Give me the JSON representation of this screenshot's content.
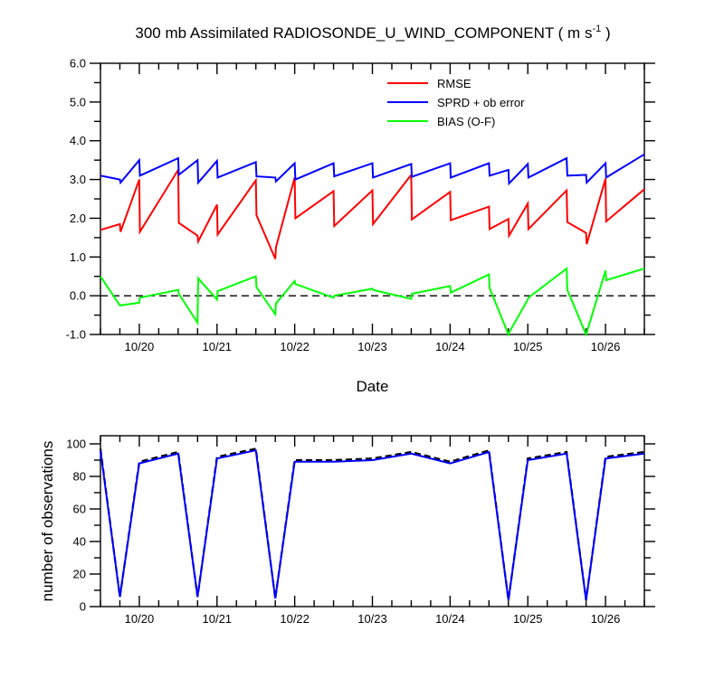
{
  "title_main": "300 mb Assimilated RADIOSONDE_U_WIND_COMPONENT ( m s",
  "title_sup": "-1",
  "title_close": " )",
  "chart_data": [
    {
      "type": "line",
      "xlabel": "Date",
      "ylabel": "",
      "x_range": [
        0,
        84
      ],
      "ylim": [
        -1.0,
        6.0
      ],
      "yticks": [
        -1.0,
        0.0,
        1.0,
        2.0,
        3.0,
        4.0,
        5.0,
        6.0
      ],
      "ytick_labels": [
        "-1.0",
        "0.0",
        "1.0",
        "2.0",
        "3.0",
        "4.0",
        "5.0",
        "6.0"
      ],
      "xticks": [
        6,
        18,
        30,
        42,
        54,
        66,
        78
      ],
      "xtick_labels": [
        "10/20",
        "10/21",
        "10/22",
        "10/23",
        "10/24",
        "10/25",
        "10/26"
      ],
      "legend_position": "top-right",
      "zero_line": "dashed",
      "series": [
        {
          "name": "RMSE",
          "color": "#ff0000",
          "x": [
            0,
            3,
            3.1,
            6,
            6.1,
            12,
            12.1,
            15,
            15.1,
            18,
            18.1,
            24,
            24.1,
            27,
            27.1,
            30,
            30.1,
            36,
            36.1,
            42,
            42.1,
            48,
            48.1,
            54,
            54.1,
            60,
            60.1,
            63,
            63.1,
            66,
            66.1,
            72,
            72.1,
            75,
            75.1,
            78,
            78.1,
            84
          ],
          "y": [
            1.7,
            1.85,
            1.65,
            3.0,
            1.65,
            3.25,
            1.88,
            1.55,
            1.4,
            2.35,
            1.58,
            2.98,
            2.08,
            0.95,
            1.25,
            3.05,
            2.0,
            2.7,
            1.8,
            2.72,
            1.85,
            3.12,
            1.97,
            2.68,
            1.95,
            2.3,
            1.72,
            1.98,
            1.55,
            2.38,
            1.72,
            2.72,
            1.9,
            1.62,
            1.33,
            3.02,
            1.92,
            2.75
          ]
        },
        {
          "name": "SPRD + ob error",
          "color": "#0000ff",
          "x": [
            0,
            3,
            3.1,
            6,
            6.1,
            12,
            12.1,
            15,
            15.1,
            18,
            18.1,
            24,
            24.1,
            27,
            27.1,
            30,
            30.1,
            36,
            36.1,
            42,
            42.1,
            48,
            48.1,
            54,
            54.1,
            60,
            60.1,
            63,
            63.1,
            66,
            66.1,
            72,
            72.1,
            75,
            75.1,
            78,
            78.1,
            84
          ],
          "y": [
            3.1,
            3.0,
            2.92,
            3.5,
            3.1,
            3.55,
            3.12,
            3.5,
            2.92,
            3.48,
            3.05,
            3.45,
            3.08,
            3.05,
            2.95,
            3.42,
            3.0,
            3.42,
            3.08,
            3.42,
            3.05,
            3.4,
            3.07,
            3.42,
            3.05,
            3.42,
            3.1,
            3.25,
            2.9,
            3.4,
            3.05,
            3.55,
            3.1,
            3.12,
            2.92,
            3.42,
            3.05,
            3.65
          ]
        },
        {
          "name": "BIAS (O-F)",
          "color": "#00ff00",
          "x": [
            0,
            3,
            6,
            6.1,
            12,
            12.1,
            15,
            15.1,
            18,
            18.1,
            24,
            24.1,
            27,
            27.1,
            30,
            30.1,
            36,
            36.1,
            42,
            42.1,
            48,
            48.1,
            54,
            54.1,
            60,
            60.1,
            63,
            63.1,
            66,
            66.1,
            72,
            72.1,
            75,
            75.1,
            78,
            78.1,
            84
          ],
          "y": [
            0.5,
            -0.25,
            -0.18,
            -0.05,
            0.15,
            0.05,
            -0.7,
            0.45,
            -0.1,
            0.12,
            0.5,
            0.22,
            -0.48,
            -0.2,
            0.38,
            0.3,
            -0.05,
            0.0,
            0.18,
            0.15,
            -0.08,
            0.05,
            0.25,
            0.08,
            0.55,
            0.2,
            -1.0,
            -0.95,
            -0.1,
            -0.05,
            0.7,
            0.15,
            -1.0,
            -0.95,
            0.65,
            0.4,
            0.7
          ]
        }
      ]
    },
    {
      "type": "line",
      "xlabel": "",
      "ylabel": "number of observations",
      "x_range": [
        0,
        84
      ],
      "ylim": [
        0,
        105
      ],
      "yticks": [
        0,
        20,
        40,
        60,
        80,
        100
      ],
      "ytick_labels": [
        "0",
        "20",
        "40",
        "60",
        "80",
        "100"
      ],
      "xticks": [
        6,
        18,
        30,
        42,
        54,
        66,
        78
      ],
      "xtick_labels": [
        "10/20",
        "10/21",
        "10/22",
        "10/23",
        "10/24",
        "10/25",
        "10/26"
      ],
      "series": [
        {
          "color": "#000000",
          "style": "dashed",
          "x": [
            0,
            3,
            6,
            12,
            15,
            18,
            24,
            27,
            30,
            36,
            42,
            48,
            54,
            60,
            63,
            66,
            72,
            75,
            78,
            84
          ],
          "y": [
            97,
            6,
            89,
            95,
            6,
            92,
            97,
            5,
            90,
            90,
            91,
            95,
            89,
            96,
            4,
            91,
            95,
            4,
            92,
            95
          ]
        },
        {
          "color": "#0000ff",
          "style": "solid",
          "x": [
            0,
            3,
            6,
            12,
            15,
            18,
            24,
            27,
            30,
            36,
            42,
            48,
            54,
            60,
            63,
            66,
            72,
            75,
            78,
            84
          ],
          "y": [
            96,
            6,
            88,
            94,
            6,
            91,
            96,
            5,
            89,
            89,
            90,
            94,
            88,
            95,
            4,
            90,
            94,
            4,
            91,
            94
          ]
        }
      ]
    }
  ]
}
